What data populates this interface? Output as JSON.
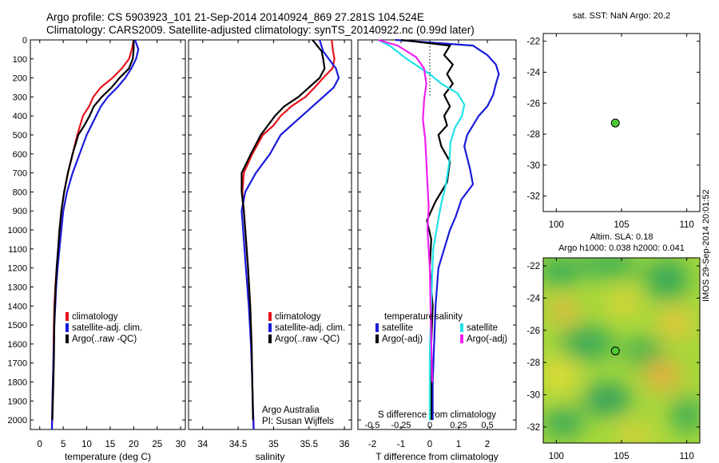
{
  "header": {
    "line1": "Argo profile: CS 5903923_101 21-Sep-2014 20140924_869 27.281S 104.524E",
    "line2": "Climatology: CARS2009. Satellite-adjusted climatology: synTS_20140922.nc (0.99d later)"
  },
  "panels": {
    "sst_title": "sat. SST: NaN Argo: 20.2",
    "alt_title1": "Altim. SLA: 0.18",
    "alt_title2": "Argo h1000: 0.038 h2000: 0.041"
  },
  "side_label": "IMOS 29-Sep-2014 20:01:52",
  "credit": {
    "line1": "Argo Australia",
    "line2": "PI: Susan Wijffels"
  },
  "colors": {
    "climatology": "#e8141c",
    "satellite": "#1a1adc",
    "argo": "#000000",
    "sat_s": "#22e2e8",
    "argo_s": "#f21ef2",
    "dot": "#4cc832"
  },
  "chart_data": [
    {
      "type": "line",
      "xlabel": "temperature (deg C)",
      "xlim": [
        -2,
        31
      ],
      "xticks": [
        0,
        5,
        10,
        15,
        20,
        25,
        30
      ],
      "ylim": [
        0,
        2050
      ],
      "yticks": [
        0,
        100,
        200,
        300,
        400,
        500,
        600,
        700,
        800,
        900,
        1000,
        1100,
        1200,
        1300,
        1400,
        1500,
        1600,
        1700,
        1800,
        1900,
        2000
      ],
      "legend": [
        "climatology",
        "satellite-adj. clim.",
        "Argo(..raw -QC)"
      ],
      "series": [
        {
          "name": "climatology",
          "x": [
            20,
            19.6,
            19,
            17.5,
            15.5,
            13,
            11.4,
            10.5,
            9.2,
            8,
            7,
            6,
            5.2,
            4.6,
            4.3,
            4,
            3.6,
            3.3,
            3.1,
            3,
            2.9,
            2.7,
            2.6
          ],
          "y": [
            0,
            50,
            100,
            150,
            200,
            250,
            300,
            350,
            400,
            500,
            600,
            700,
            800,
            900,
            1000,
            1100,
            1200,
            1300,
            1400,
            1500,
            1700,
            1900,
            2050
          ]
        },
        {
          "name": "satellite-adj. clim.",
          "x": [
            20.3,
            21,
            20.5,
            19.5,
            18.2,
            16.5,
            14.5,
            13,
            12,
            11,
            10,
            8.5,
            7,
            5.8,
            5,
            4.6,
            4.2,
            3.8,
            3.5,
            3.3,
            3.1,
            2.9,
            2.7,
            2.6
          ],
          "y": [
            0,
            50,
            100,
            150,
            200,
            250,
            300,
            350,
            400,
            450,
            500,
            600,
            700,
            800,
            900,
            1000,
            1100,
            1200,
            1300,
            1400,
            1500,
            1700,
            1900,
            2050
          ]
        },
        {
          "name": "Argo(..raw -QC)",
          "x": [
            20,
            20,
            19.8,
            19,
            17,
            15.3,
            13.2,
            11.5,
            10.6,
            9.5,
            8.2,
            7,
            6,
            5.2,
            4.6,
            4.2,
            3.9,
            3.6,
            3.4,
            3.2,
            3.1,
            3,
            2.8,
            2.7
          ],
          "y": [
            0,
            50,
            100,
            150,
            200,
            250,
            300,
            350,
            400,
            450,
            500,
            600,
            700,
            800,
            900,
            1000,
            1100,
            1200,
            1300,
            1400,
            1500,
            1700,
            1900,
            2000
          ]
        }
      ]
    },
    {
      "type": "line",
      "xlabel": "salinity",
      "xlim": [
        33.8,
        36.1
      ],
      "xticks": [
        34,
        34.5,
        35,
        35.5,
        36
      ],
      "ylim": [
        0,
        2050
      ],
      "legend": [
        "climatology",
        "satellite-adj. clim.",
        "Argo(..raw -QC)"
      ],
      "series": [
        {
          "name": "climatology",
          "x": [
            35.82,
            35.84,
            35.86,
            35.83,
            35.7,
            35.58,
            35.45,
            35.25,
            35.1,
            35,
            34.85,
            34.7,
            34.58,
            34.56,
            34.58,
            34.6,
            34.64,
            34.67,
            34.69,
            34.7,
            34.71,
            34.72
          ],
          "y": [
            0,
            60,
            100,
            150,
            200,
            250,
            300,
            350,
            400,
            450,
            500,
            600,
            700,
            800,
            900,
            1000,
            1200,
            1400,
            1600,
            1800,
            1950,
            2050
          ]
        },
        {
          "name": "satellite-adj. clim.",
          "x": [
            35.65,
            35.7,
            35.78,
            35.88,
            35.92,
            35.85,
            35.7,
            35.55,
            35.4,
            35.25,
            35.1,
            34.95,
            34.75,
            34.6,
            34.55,
            34.57,
            34.61,
            34.65,
            34.68,
            34.7,
            34.71,
            34.72
          ],
          "y": [
            0,
            60,
            100,
            150,
            200,
            250,
            300,
            350,
            400,
            450,
            500,
            600,
            700,
            800,
            900,
            1000,
            1200,
            1400,
            1600,
            1800,
            1950,
            2050
          ]
        },
        {
          "name": "Argo(..raw -QC)",
          "x": [
            35.55,
            35.68,
            35.7,
            35.72,
            35.65,
            35.5,
            35.35,
            35.15,
            35.02,
            34.92,
            34.82,
            34.68,
            34.55,
            34.55,
            34.58,
            34.6,
            34.64,
            34.67,
            34.69,
            34.7,
            34.71
          ],
          "y": [
            0,
            60,
            100,
            150,
            200,
            250,
            300,
            350,
            400,
            450,
            500,
            600,
            700,
            800,
            900,
            1000,
            1200,
            1400,
            1600,
            1800,
            2000
          ]
        }
      ]
    },
    {
      "type": "line",
      "xlabel": "T difference from climatology",
      "xlabel_top": "S difference from climatology",
      "xlim": [
        -2.5,
        3.0
      ],
      "xticks": [
        -2,
        -1,
        0,
        1,
        2
      ],
      "sticks": [
        "-0.5",
        "-0.25",
        "0",
        "0.25",
        "0.5"
      ],
      "ylim": [
        0,
        2050
      ],
      "legend_t_title": "temperature",
      "legend_s_title": "salinity",
      "legend": [
        "satellite",
        "Argo(-adj)",
        "satellite",
        "Argo(-adj)"
      ],
      "series": [
        {
          "name": "satellite",
          "x": [
            -1.2,
            1.5,
            2,
            2.3,
            2.4,
            2.3,
            2.2,
            2,
            1.7,
            1.5,
            1.3,
            1.2,
            1.3,
            1.4,
            1.5,
            1.1,
            0.9,
            0.7,
            0.5,
            0.3,
            0.2,
            0.15,
            0.1,
            0.1
          ],
          "y": [
            0,
            30,
            80,
            130,
            180,
            230,
            290,
            350,
            400,
            450,
            500,
            560,
            620,
            680,
            760,
            840,
            930,
            1000,
            1100,
            1200,
            1400,
            1600,
            1800,
            2000
          ]
        },
        {
          "name": "Argo(-adj)",
          "x": [
            -1,
            0.7,
            0.5,
            0.8,
            0.6,
            0.8,
            0.5,
            0.7,
            0.5,
            0.6,
            0.3,
            0.4,
            0.7,
            0.6,
            0.2,
            -0.1,
            0.05,
            0,
            0.1,
            0.05,
            0.05,
            0.05,
            0.05
          ],
          "y": [
            0,
            30,
            80,
            130,
            180,
            230,
            290,
            350,
            400,
            450,
            500,
            560,
            640,
            750,
            850,
            950,
            1050,
            1200,
            1400,
            1600,
            1800,
            1950,
            2000
          ]
        },
        {
          "name": "satellite",
          "x": [
            -0.45,
            -0.35,
            -0.2,
            0,
            0.1,
            0.24,
            0.3,
            0.28,
            0.22,
            0.18,
            0.17,
            0.14,
            0.1,
            0.07,
            0.03,
            0.02,
            0.01,
            0.0,
            0.0,
            0.0
          ],
          "y": [
            0,
            30,
            100,
            180,
            230,
            280,
            340,
            400,
            460,
            540,
            640,
            760,
            860,
            960,
            1100,
            1250,
            1450,
            1650,
            1850,
            2000
          ]
        },
        {
          "name": "Argo(-adj)",
          "x": [
            -0.45,
            -0.28,
            -0.12,
            -0.05,
            -0.03,
            -0.05,
            -0.06,
            -0.04,
            -0.03,
            -0.02,
            -0.01,
            -0.02,
            0.0,
            0.01,
            0.02
          ],
          "y": [
            0,
            30,
            90,
            150,
            230,
            320,
            420,
            520,
            640,
            760,
            880,
            1000,
            1200,
            1500,
            1800
          ]
        }
      ]
    },
    {
      "type": "scatter",
      "title": "sat. SST: NaN Argo: 20.2",
      "xlim": [
        99,
        111
      ],
      "ylim": [
        -33,
        -21.5
      ],
      "xticks": [
        100,
        105,
        110
      ],
      "yticks": [
        -22,
        -24,
        -26,
        -28,
        -30,
        -32
      ],
      "points": [
        {
          "x": 104.524,
          "y": -27.281
        }
      ]
    },
    {
      "type": "heatmap",
      "title": "Altim. SLA: 0.18",
      "xlim": [
        99,
        111
      ],
      "ylim": [
        -33,
        -21.5
      ],
      "xticks": [
        100,
        105,
        110
      ],
      "yticks": [
        -22,
        -24,
        -26,
        -28,
        -30,
        -32
      ],
      "points": [
        {
          "x": 104.524,
          "y": -27.281
        }
      ]
    }
  ]
}
